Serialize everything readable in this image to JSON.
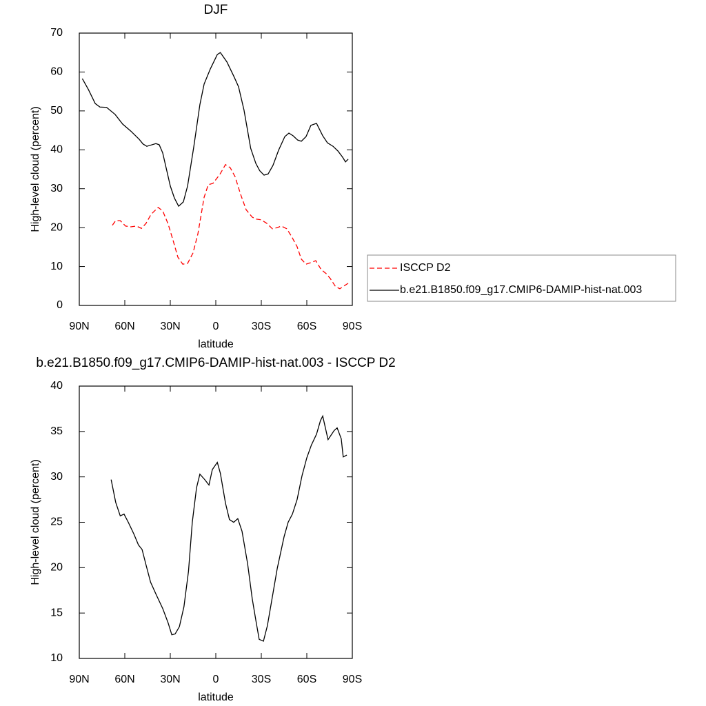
{
  "chart_data": [
    {
      "type": "line",
      "title": "DJF",
      "xlabel": "latitude",
      "ylabel": "High-level cloud (percent)",
      "xlim": [
        90,
        -90
      ],
      "xticks": [
        {
          "value": 90,
          "label": "90N"
        },
        {
          "value": 60,
          "label": "60N"
        },
        {
          "value": 30,
          "label": "30N"
        },
        0,
        {
          "value": -30,
          "label": "30S"
        },
        {
          "value": -60,
          "label": "60S"
        },
        {
          "value": -90,
          "label": "90S"
        }
      ],
      "ylim": [
        0,
        70
      ],
      "yticks": [
        0,
        10,
        20,
        30,
        40,
        50,
        60,
        70
      ],
      "legend": "right",
      "series": [
        {
          "name": "ISCCP D2",
          "color": "#ff0000",
          "dash": "dashed",
          "x": [
            68.2,
            66,
            63,
            59.5,
            56,
            52.3,
            49,
            46,
            42.7,
            38,
            35,
            31.4,
            28,
            25,
            21.8,
            18.6,
            15,
            11.8,
            7.7,
            5,
            1.8,
            -2.7,
            -6.4,
            -9.5,
            -12.7,
            -16.4,
            -20,
            -24,
            -26.4,
            -30,
            -33.6,
            -37.3,
            -40.5,
            -43.2,
            -46.8,
            -50,
            -53.6,
            -56.4,
            -59.5,
            -62.7,
            -65.9,
            -69.5,
            -72.7,
            -75.5,
            -79,
            -81.8,
            -84.5,
            -87.3
          ],
          "values": [
            20.6,
            21.8,
            21.8,
            20.4,
            20.2,
            20.4,
            19.8,
            21.1,
            23.4,
            25.2,
            24.3,
            20.9,
            16.5,
            12.4,
            10.6,
            10.8,
            13.5,
            18.4,
            27.8,
            31.0,
            31.4,
            33.7,
            36.2,
            35.4,
            33.1,
            28.5,
            24.6,
            22.7,
            22.2,
            22.0,
            21.1,
            19.7,
            20.0,
            20.4,
            19.7,
            17.7,
            15.1,
            11.9,
            10.6,
            11.0,
            11.5,
            9.2,
            8.2,
            6.9,
            4.8,
            4.3,
            5.0,
            5.7
          ]
        },
        {
          "name": "b.e21.B1850.f09_g17.CMIP6-DAMIP-hist-nat.003",
          "color": "#000000",
          "dash": "solid",
          "x": [
            88,
            84,
            79.5,
            76.4,
            72,
            66.4,
            61.4,
            56,
            50.5,
            48,
            45.5,
            39.5,
            37.3,
            35,
            30,
            27.3,
            24.5,
            21.4,
            18.6,
            14.5,
            10.5,
            7.7,
            3.6,
            -1,
            -3,
            -7.3,
            -12,
            -15,
            -18.6,
            -23,
            -26.4,
            -29,
            -31.8,
            -34.5,
            -37.7,
            -41.4,
            -45.5,
            -48.2,
            -51,
            -54,
            -56.4,
            -59.5,
            -62.7,
            -66.4,
            -70.5,
            -73.6,
            -77.3,
            -80.5,
            -83.6,
            -85.5,
            -87.3
          ],
          "values": [
            58.3,
            55.5,
            51.9,
            51.0,
            50.9,
            49.1,
            46.6,
            44.8,
            42.7,
            41.5,
            40.9,
            41.6,
            41.3,
            39.2,
            30.7,
            27.6,
            25.5,
            26.6,
            30.7,
            40.8,
            51.6,
            56.9,
            60.8,
            64.5,
            65.0,
            62.6,
            58.8,
            56.2,
            50.2,
            40.4,
            36.5,
            34.6,
            33.5,
            33.8,
            36.0,
            39.9,
            43.4,
            44.3,
            43.6,
            42.5,
            42.2,
            43.4,
            46.3,
            46.8,
            43.6,
            41.8,
            40.9,
            39.7,
            38.1,
            36.9,
            37.6
          ]
        }
      ]
    },
    {
      "type": "line",
      "title": "b.e21.B1850.f09_g17.CMIP6-DAMIP-hist-nat.003 - ISCCP D2",
      "xlabel": "latitude",
      "ylabel": "High-level cloud (percent)",
      "xlim": [
        90,
        -90
      ],
      "xticks": [
        {
          "value": 90,
          "label": "90N"
        },
        {
          "value": 60,
          "label": "60N"
        },
        {
          "value": 30,
          "label": "30N"
        },
        0,
        {
          "value": -30,
          "label": "30S"
        },
        {
          "value": -60,
          "label": "60S"
        },
        {
          "value": -90,
          "label": "90S"
        }
      ],
      "ylim": [
        10,
        40
      ],
      "yticks": [
        10,
        15,
        20,
        25,
        30,
        35,
        40
      ],
      "series": [
        {
          "color": "#000000",
          "dash": "solid",
          "x": [
            69,
            66,
            63,
            60.5,
            57.7,
            54,
            51,
            48.6,
            46,
            43,
            39.5,
            35,
            31.4,
            29,
            26.8,
            24,
            21,
            18,
            15.5,
            12.7,
            10.5,
            7.3,
            4.5,
            2.3,
            -1,
            -3,
            -6.4,
            -9,
            -11.8,
            -14.5,
            -17.3,
            -21,
            -24,
            -26.4,
            -28.6,
            -31.4,
            -34,
            -37,
            -40.5,
            -45,
            -47.7,
            -50.5,
            -53.6,
            -56.8,
            -60,
            -63,
            -66.4,
            -69,
            -70.5,
            -74,
            -78,
            -80,
            -82.7,
            -84,
            -86.4
          ],
          "values": [
            29.7,
            27.2,
            25.7,
            25.9,
            25.0,
            23.7,
            22.5,
            22.0,
            20.3,
            18.4,
            17.1,
            15.5,
            13.9,
            12.6,
            12.7,
            13.5,
            15.7,
            19.6,
            25.0,
            28.8,
            30.3,
            29.7,
            29.1,
            30.8,
            31.6,
            30.4,
            27.1,
            25.3,
            25.0,
            25.4,
            24.0,
            20.4,
            16.6,
            14.2,
            12.1,
            11.9,
            13.6,
            16.5,
            19.9,
            23.4,
            25.0,
            25.9,
            27.5,
            30.1,
            32.1,
            33.5,
            34.7,
            36.2,
            36.7,
            34.1,
            35.1,
            35.4,
            34.2,
            32.2,
            32.4
          ]
        }
      ]
    }
  ]
}
